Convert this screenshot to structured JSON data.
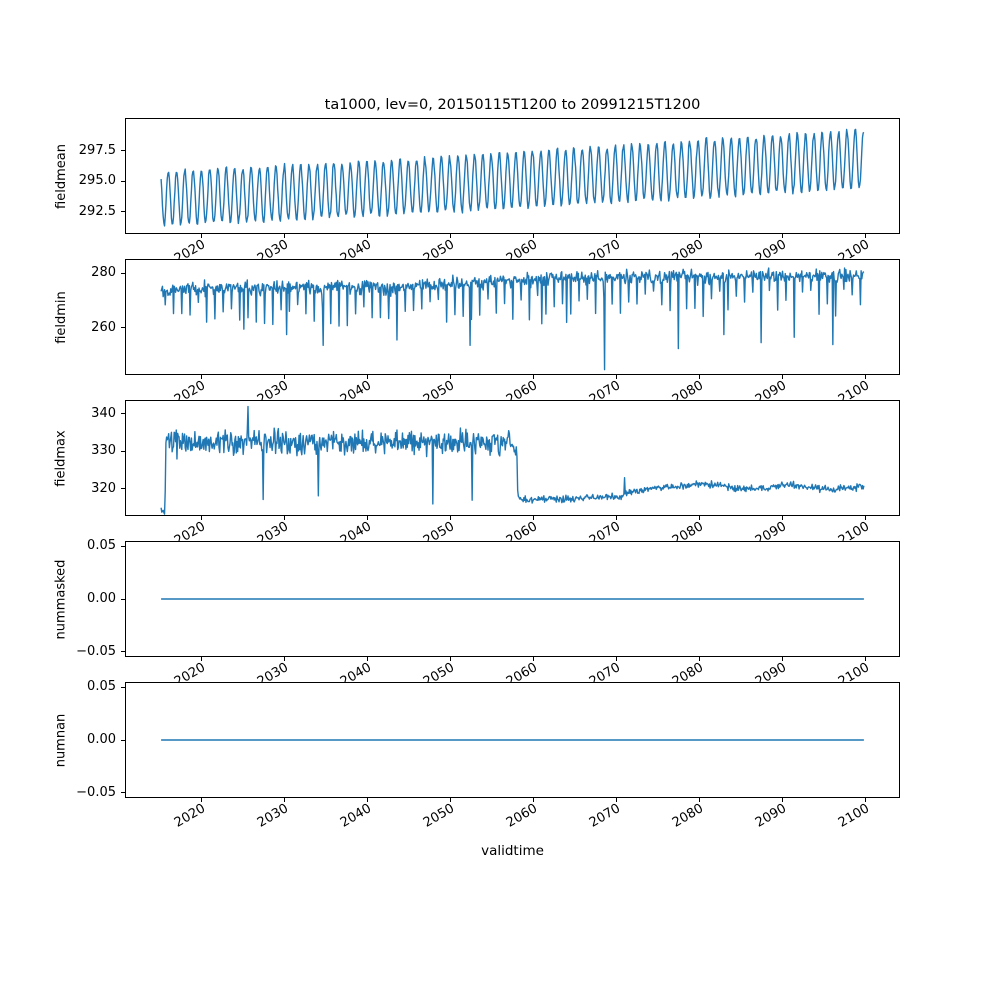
{
  "figure": {
    "title": "ta1000, lev=0, 20150115T1200 to 20991215T1200",
    "xlabel": "validtime",
    "line_color": "#1f77b4",
    "axis_color": "#000000",
    "background_color": "#ffffff",
    "xlim": [
      2010.8,
      2104.2
    ],
    "xticks": [
      {
        "v": 2020,
        "label": "2020"
      },
      {
        "v": 2030,
        "label": "2030"
      },
      {
        "v": 2040,
        "label": "2040"
      },
      {
        "v": 2050,
        "label": "2050"
      },
      {
        "v": 2060,
        "label": "2060"
      },
      {
        "v": 2070,
        "label": "2070"
      },
      {
        "v": 2080,
        "label": "2080"
      },
      {
        "v": 2090,
        "label": "2090"
      },
      {
        "v": 2100,
        "label": "2100"
      }
    ]
  },
  "chart_data": [
    {
      "type": "line",
      "name": "fieldmean",
      "ylabel": "fieldmean",
      "x_start": 2015.04,
      "x_end": 2099.96,
      "points_per_year": 12,
      "ylim": [
        290.7,
        300.15
      ],
      "yticks": [
        {
          "v": 292.5,
          "label": "292.5"
        },
        {
          "v": 295.0,
          "label": "295.0"
        },
        {
          "v": 297.5,
          "label": "297.5"
        }
      ],
      "gen": {
        "seed": 11,
        "base": [
          [
            2015.04,
            293.6
          ],
          [
            2040,
            294.35
          ],
          [
            2070,
            295.6
          ],
          [
            2099.96,
            296.85
          ]
        ],
        "amplitude": [
          [
            2015.04,
            2.2
          ],
          [
            2099.96,
            2.4
          ]
        ],
        "phase": 0.8,
        "noise": 0.12
      }
    },
    {
      "type": "line",
      "name": "fieldmin",
      "ylabel": "fieldmin",
      "x_start": 2015.04,
      "x_end": 2099.96,
      "points_per_year": 12,
      "ylim": [
        242.9,
        285.1
      ],
      "yticks": [
        {
          "v": 260,
          "label": "260"
        },
        {
          "v": 280,
          "label": "280"
        }
      ],
      "gen": {
        "seed": 22,
        "base": [
          [
            2015.04,
            274.5
          ],
          [
            2045,
            275.2
          ],
          [
            2055,
            277.0
          ],
          [
            2065,
            278.6
          ],
          [
            2099.96,
            279.4
          ]
        ],
        "noise": 1.2,
        "annual_dip": {
          "frac": 0.54,
          "min": 5,
          "max": 15
        },
        "spikes": [
          [
            2025.0,
            259.5
          ],
          [
            2030.2,
            257.5
          ],
          [
            2034.6,
            253.5
          ],
          [
            2043.5,
            255.5
          ],
          [
            2052.4,
            253.5
          ],
          [
            2061.0,
            261.5
          ],
          [
            2064.0,
            262.0
          ],
          [
            2068.6,
            244.5
          ],
          [
            2077.5,
            252.3
          ],
          [
            2083.0,
            257.5
          ],
          [
            2087.5,
            254.5
          ],
          [
            2091.5,
            256.5
          ],
          [
            2096.2,
            253.8
          ]
        ]
      }
    },
    {
      "type": "line",
      "name": "fieldmax",
      "ylabel": "fieldmax",
      "x_start": 2015.04,
      "x_end": 2099.96,
      "points_per_year": 12,
      "ylim": [
        312.8,
        343.7
      ],
      "yticks": [
        {
          "v": 320,
          "label": "320"
        },
        {
          "v": 330,
          "label": "330"
        },
        {
          "v": 340,
          "label": "340"
        }
      ],
      "gen": {
        "seed": 33,
        "base": [
          [
            2015.04,
            314.2
          ],
          [
            2015.38,
            312.9
          ],
          [
            2015.5,
            313.5
          ],
          [
            2015.62,
            332.3
          ],
          [
            2058.0,
            332.6
          ],
          [
            2058.15,
            316.9
          ],
          [
            2070.9,
            317.7
          ],
          [
            2071.15,
            319.0
          ],
          [
            2076.0,
            320.3
          ],
          [
            2081.0,
            321.2
          ],
          [
            2086.0,
            319.9
          ],
          [
            2091.0,
            320.9
          ],
          [
            2096.0,
            319.6
          ],
          [
            2099.96,
            320.5
          ]
        ],
        "noise_keys": [
          [
            2015.04,
            0.7
          ],
          [
            2015.55,
            0.7
          ],
          [
            2015.7,
            1.6
          ],
          [
            2058.0,
            1.6
          ],
          [
            2058.2,
            0.45
          ],
          [
            2099.96,
            0.45
          ]
        ],
        "spikes": [
          [
            2025.5,
            342.2
          ],
          [
            2027.4,
            317.0
          ],
          [
            2034.0,
            318.0
          ],
          [
            2047.9,
            315.8
          ],
          [
            2052.6,
            316.8
          ],
          [
            2071.05,
            322.9
          ]
        ]
      }
    },
    {
      "type": "line",
      "name": "nummasked",
      "ylabel": "nummasked",
      "x_start": 2015.04,
      "x_end": 2099.96,
      "points_per_year": 1,
      "ylim": [
        -0.055,
        0.055
      ],
      "yticks": [
        {
          "v": -0.05,
          "label": "−0.05"
        },
        {
          "v": 0,
          "label": "0.00"
        },
        {
          "v": 0.05,
          "label": "0.05"
        }
      ],
      "gen": {
        "seed": 44,
        "base": [
          [
            2015.04,
            0
          ],
          [
            2099.96,
            0
          ]
        ],
        "noise": 0
      }
    },
    {
      "type": "line",
      "name": "numnan",
      "ylabel": "numnan",
      "x_start": 2015.04,
      "x_end": 2099.96,
      "points_per_year": 1,
      "ylim": [
        -0.055,
        0.055
      ],
      "yticks": [
        {
          "v": -0.05,
          "label": "−0.05"
        },
        {
          "v": 0,
          "label": "0.00"
        },
        {
          "v": 0.05,
          "label": "0.05"
        }
      ],
      "gen": {
        "seed": 55,
        "base": [
          [
            2015.04,
            0
          ],
          [
            2099.96,
            0
          ]
        ],
        "noise": 0
      }
    }
  ]
}
